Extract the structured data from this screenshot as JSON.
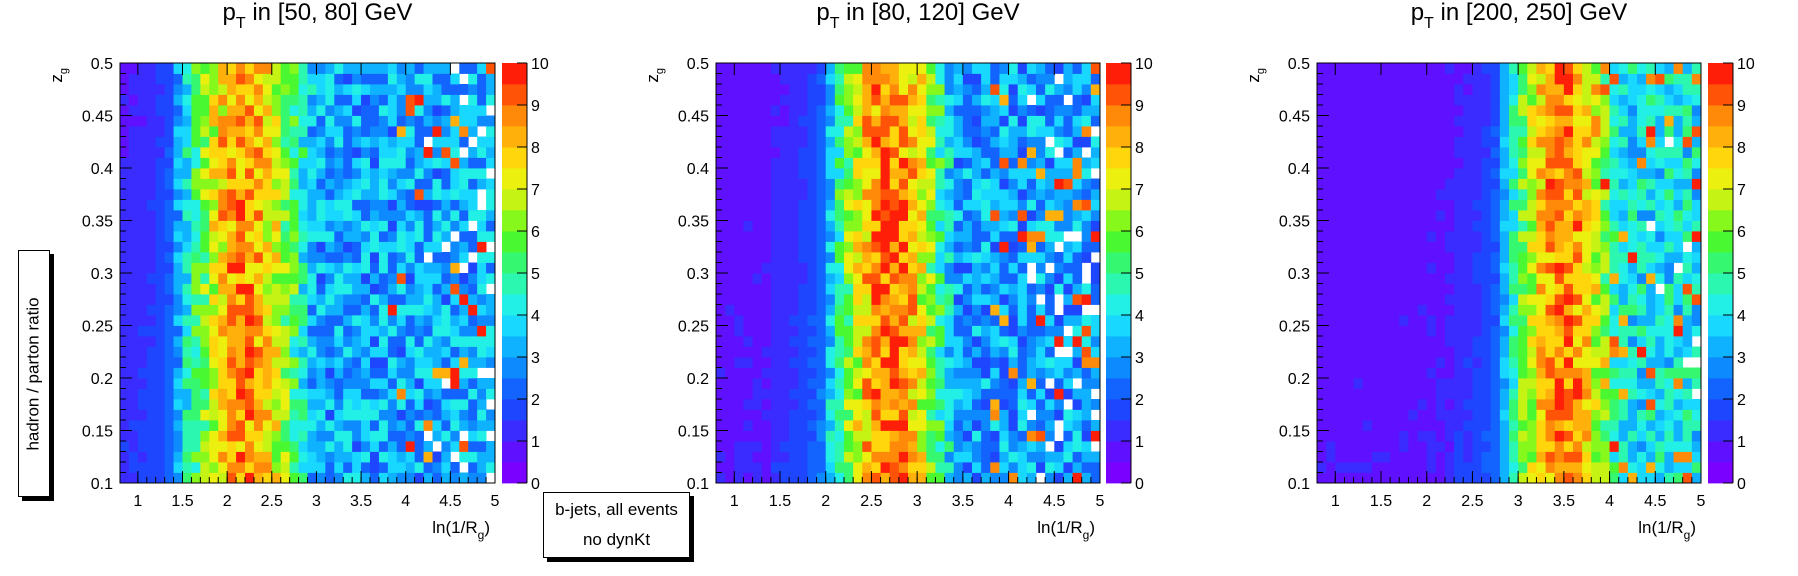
{
  "side_label": "hadron / parton ratio",
  "legend": {
    "line1": "b-jets, all events",
    "line2": "no dynKt"
  },
  "chart_data": [
    {
      "type": "heatmap",
      "title": "p_T in [50, 80] GeV",
      "title_main": "p",
      "title_sub": "T",
      "title_rest": " in [50, 80] GeV",
      "xlabel_main": "ln(1/R",
      "xlabel_sub": "g",
      "xlabel_end": ")",
      "ylabel_main": "z",
      "ylabel_sub": "g",
      "xlim": [
        0.8,
        5.0
      ],
      "ylim": [
        0.1,
        0.5
      ],
      "zlim": [
        0,
        10
      ],
      "x_ticks": [
        "1",
        "1.5",
        "2",
        "2.5",
        "3",
        "3.5",
        "4",
        "4.5",
        "5"
      ],
      "y_ticks": [
        "0.1",
        "0.15",
        "0.2",
        "0.25",
        "0.3",
        "0.35",
        "0.4",
        "0.45",
        "0.5"
      ],
      "z_ticks": [
        "0",
        "1",
        "2",
        "3",
        "4",
        "5",
        "6",
        "7",
        "8",
        "9",
        "10"
      ],
      "ridge_x": 1.45,
      "peak_x": 2.2,
      "peak_value": 8.6,
      "peak_width": 0.55,
      "tail_value": 3.2,
      "noise": 2.6,
      "empty_fraction": 0.05
    },
    {
      "type": "heatmap",
      "title": "p_T in [80, 120] GeV",
      "title_main": "p",
      "title_sub": "T",
      "title_rest": " in [80, 120] GeV",
      "xlabel_main": "ln(1/R",
      "xlabel_sub": "g",
      "xlabel_end": ")",
      "ylabel_main": "z",
      "ylabel_sub": "g",
      "xlim": [
        0.8,
        5.0
      ],
      "ylim": [
        0.1,
        0.5
      ],
      "zlim": [
        0,
        10
      ],
      "x_ticks": [
        "1",
        "1.5",
        "2",
        "2.5",
        "3",
        "3.5",
        "4",
        "4.5",
        "5"
      ],
      "y_ticks": [
        "0.1",
        "0.15",
        "0.2",
        "0.25",
        "0.3",
        "0.35",
        "0.4",
        "0.45",
        "0.5"
      ],
      "z_ticks": [
        "0",
        "1",
        "2",
        "3",
        "4",
        "5",
        "6",
        "7",
        "8",
        "9",
        "10"
      ],
      "ridge_x": 2.0,
      "peak_x": 2.7,
      "peak_value": 9.0,
      "peak_width": 0.5,
      "tail_value": 3.0,
      "noise": 2.6,
      "empty_fraction": 0.05
    },
    {
      "type": "heatmap",
      "title": "p_T in [200, 250] GeV",
      "title_main": "p",
      "title_sub": "T",
      "title_rest": " in [200, 250] GeV",
      "xlabel_main": "ln(1/R",
      "xlabel_sub": "g",
      "xlabel_end": ")",
      "ylabel_main": "z",
      "ylabel_sub": "g",
      "xlim": [
        0.8,
        5.0
      ],
      "ylim": [
        0.1,
        0.5
      ],
      "zlim": [
        0,
        10
      ],
      "x_ticks": [
        "1",
        "1.5",
        "2",
        "2.5",
        "3",
        "3.5",
        "4",
        "4.5",
        "5"
      ],
      "y_ticks": [
        "0.1",
        "0.15",
        "0.2",
        "0.25",
        "0.3",
        "0.35",
        "0.4",
        "0.45",
        "0.5"
      ],
      "z_ticks": [
        "0",
        "1",
        "2",
        "3",
        "4",
        "5",
        "6",
        "7",
        "8",
        "9",
        "10"
      ],
      "ridge_x": 2.85,
      "peak_x": 3.5,
      "peak_value": 8.8,
      "peak_width": 0.5,
      "tail_value": 4.0,
      "noise": 2.4,
      "empty_fraction": 0.02
    }
  ]
}
